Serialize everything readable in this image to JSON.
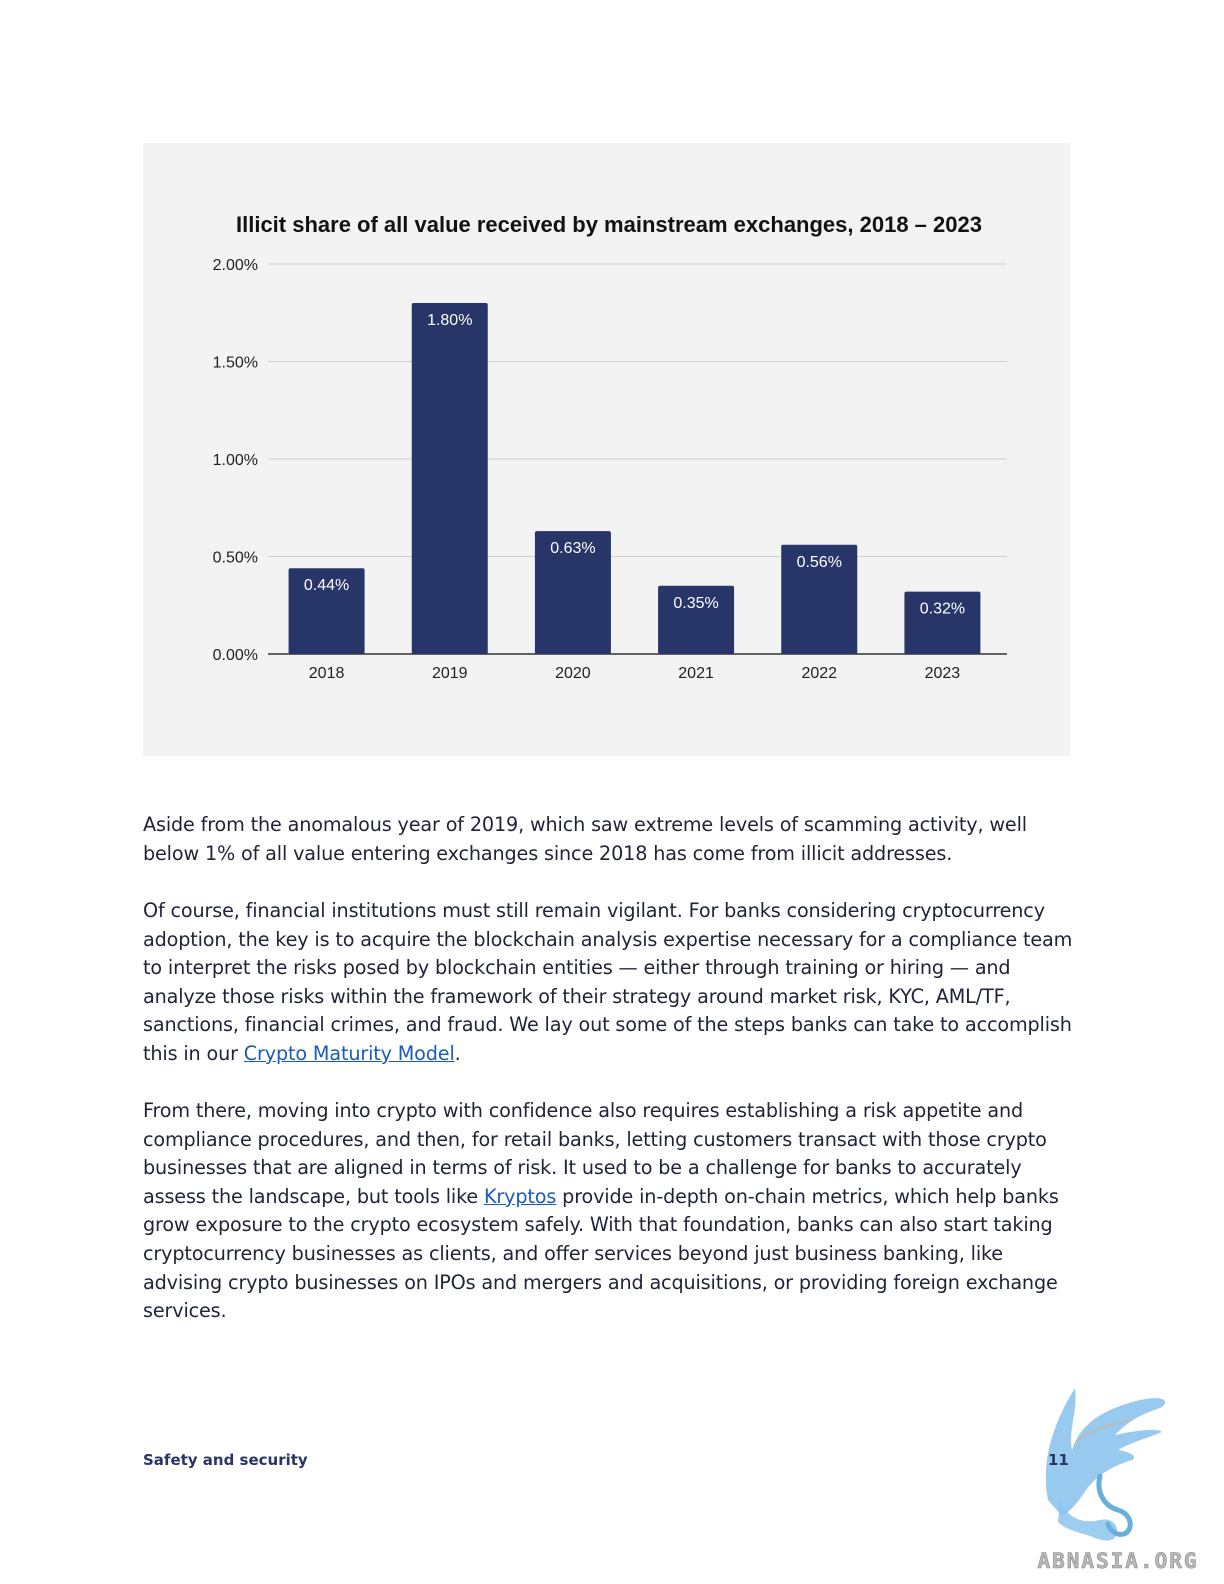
{
  "chart_data": {
    "type": "bar",
    "title": "Illicit share of all value received by mainstream exchanges,  2018 – 2023",
    "categories": [
      "2018",
      "2019",
      "2020",
      "2021",
      "2022",
      "2023"
    ],
    "values": [
      0.44,
      1.8,
      0.63,
      0.35,
      0.56,
      0.32
    ],
    "value_labels": [
      "0.44%",
      "1.80%",
      "0.63%",
      "0.35%",
      "0.56%",
      "0.32%"
    ],
    "ylim": [
      0,
      2.0
    ],
    "yticks": [
      0,
      0.5,
      1.0,
      1.5,
      2.0
    ],
    "ytick_labels": [
      "0.00%",
      "0.50%",
      "1.00%",
      "1.50%",
      "2.00%"
    ],
    "xlabel": "",
    "ylabel": "",
    "grid": true,
    "bar_color": "#283569"
  },
  "body": {
    "p1": "Aside from the anomalous year of 2019, which saw extreme levels of scamming activity, well below 1% of all value entering exchanges since 2018 has come from illicit addresses.",
    "p2_before": "Of course, financial institutions must still remain vigilant. For banks considering cryptocurrency adoption, the key is to acquire the blockchain analysis expertise necessary for a compliance team to interpret the risks posed by blockchain entities — either through training or hiring — and analyze those risks within the framework of their strategy around market risk, KYC, AML/TF, sanctions, financial crimes, and fraud. We lay out some of the steps banks can take to accomplish this in our ",
    "p2_link": "Crypto Maturity Model",
    "p2_after": ".",
    "p3_before": "From there, moving into crypto with confidence also requires establishing a risk appetite and compliance procedures, and then, for retail banks, letting customers transact with those crypto businesses that are aligned in terms of risk. It used to be a challenge for banks to accurately assess the landscape, but tools like ",
    "p3_link": "Kryptos",
    "p3_after": " provide in-depth on-chain metrics, which help banks grow exposure to the crypto ecosystem safely. With that foundation, banks can also start taking cryptocurrency businesses as clients, and offer services beyond just business banking, like advising crypto businesses on IPOs and mergers and acquisitions, or providing foreign exchange services."
  },
  "footer": {
    "section": "Safety and security",
    "page_number": "11"
  },
  "watermark": {
    "text": "ABNASIA.ORG",
    "icon": "griffin-logo"
  },
  "colors": {
    "link": "#1a5bbf",
    "footer": "#2a3566",
    "chart_bg": "#f3f3f3"
  }
}
